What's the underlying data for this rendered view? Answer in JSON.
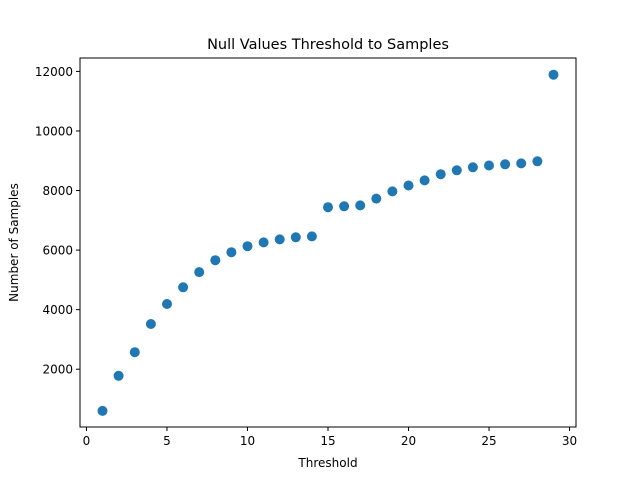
{
  "chart_data": {
    "type": "scatter",
    "title": "Null Values Threshold to Samples",
    "xlabel": "Threshold",
    "ylabel": "Number of Samples",
    "xlim": [
      -0.4,
      30.4
    ],
    "ylim": [
      60,
      12450
    ],
    "xticks": [
      0,
      5,
      10,
      15,
      20,
      25,
      30
    ],
    "yticks": [
      2000,
      4000,
      6000,
      8000,
      10000,
      12000
    ],
    "grid": false,
    "legend": "none",
    "marker_color": "#1f77b4",
    "points": [
      {
        "x": 1,
        "y": 600
      },
      {
        "x": 2,
        "y": 1780
      },
      {
        "x": 3,
        "y": 2570
      },
      {
        "x": 4,
        "y": 3520
      },
      {
        "x": 5,
        "y": 4190
      },
      {
        "x": 6,
        "y": 4750
      },
      {
        "x": 7,
        "y": 5260
      },
      {
        "x": 8,
        "y": 5660
      },
      {
        "x": 9,
        "y": 5930
      },
      {
        "x": 10,
        "y": 6130
      },
      {
        "x": 11,
        "y": 6260
      },
      {
        "x": 12,
        "y": 6360
      },
      {
        "x": 13,
        "y": 6430
      },
      {
        "x": 14,
        "y": 6460
      },
      {
        "x": 15,
        "y": 7440
      },
      {
        "x": 16,
        "y": 7470
      },
      {
        "x": 17,
        "y": 7500
      },
      {
        "x": 18,
        "y": 7730
      },
      {
        "x": 19,
        "y": 7970
      },
      {
        "x": 20,
        "y": 8170
      },
      {
        "x": 21,
        "y": 8340
      },
      {
        "x": 22,
        "y": 8550
      },
      {
        "x": 23,
        "y": 8680
      },
      {
        "x": 24,
        "y": 8780
      },
      {
        "x": 25,
        "y": 8840
      },
      {
        "x": 26,
        "y": 8880
      },
      {
        "x": 27,
        "y": 8910
      },
      {
        "x": 28,
        "y": 8980
      },
      {
        "x": 29,
        "y": 11890
      }
    ]
  }
}
